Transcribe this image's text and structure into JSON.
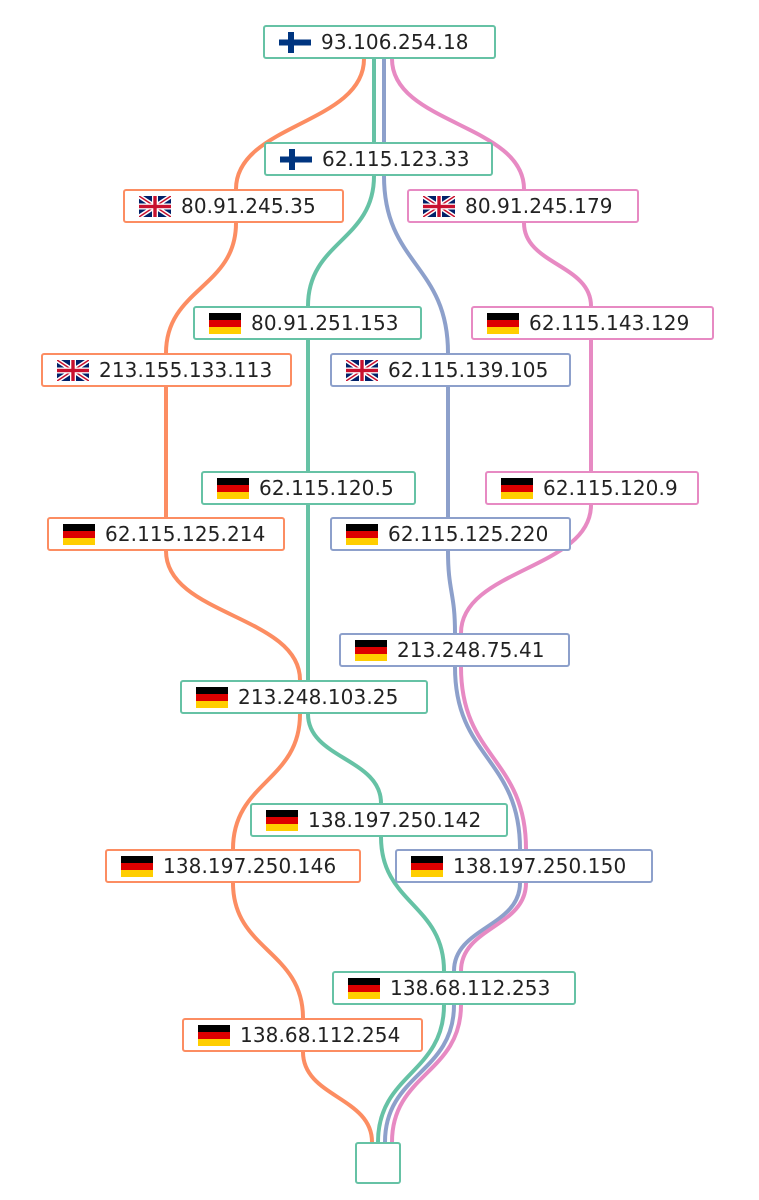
{
  "route_colors": {
    "orange": "#fc8d62",
    "green": "#66c2a5",
    "blue": "#8da0cb",
    "pink": "#e78ac3"
  },
  "flag_colors": {
    "fi": {
      "cross": "#003580",
      "field": "#ffffff"
    },
    "de": {
      "top": "#000000",
      "middle": "#dd0000",
      "bottom": "#ffce00"
    },
    "gb": {
      "field": "#012169",
      "saltire": "#ffffff",
      "cross": "#c8102e"
    }
  },
  "nodes": [
    {
      "id": "n0",
      "ip": "93.106.254.18",
      "country": "fi",
      "route": "green"
    },
    {
      "id": "n1",
      "ip": "62.115.123.33",
      "country": "fi",
      "route": "green"
    },
    {
      "id": "n2",
      "ip": "80.91.245.35",
      "country": "gb",
      "route": "orange"
    },
    {
      "id": "n3",
      "ip": "80.91.245.179",
      "country": "gb",
      "route": "pink"
    },
    {
      "id": "n4",
      "ip": "80.91.251.153",
      "country": "de",
      "route": "green"
    },
    {
      "id": "n5",
      "ip": "62.115.143.129",
      "country": "de",
      "route": "pink"
    },
    {
      "id": "n6",
      "ip": "213.155.133.113",
      "country": "gb",
      "route": "orange"
    },
    {
      "id": "n7",
      "ip": "62.115.139.105",
      "country": "gb",
      "route": "blue"
    },
    {
      "id": "n8",
      "ip": "62.115.120.5",
      "country": "de",
      "route": "green"
    },
    {
      "id": "n9",
      "ip": "62.115.120.9",
      "country": "de",
      "route": "pink"
    },
    {
      "id": "n10",
      "ip": "62.115.125.214",
      "country": "de",
      "route": "orange"
    },
    {
      "id": "n11",
      "ip": "62.115.125.220",
      "country": "de",
      "route": "blue"
    },
    {
      "id": "n12",
      "ip": "213.248.75.41",
      "country": "de",
      "route": "blue"
    },
    {
      "id": "n13",
      "ip": "213.248.103.25",
      "country": "de",
      "route": "green"
    },
    {
      "id": "n14",
      "ip": "138.197.250.142",
      "country": "de",
      "route": "green"
    },
    {
      "id": "n15",
      "ip": "138.197.250.146",
      "country": "de",
      "route": "orange"
    },
    {
      "id": "n16",
      "ip": "138.197.250.150",
      "country": "de",
      "route": "blue"
    },
    {
      "id": "n17",
      "ip": "138.68.112.253",
      "country": "de",
      "route": "green"
    },
    {
      "id": "n18",
      "ip": "138.68.112.254",
      "country": "de",
      "route": "orange"
    }
  ],
  "routes": [
    {
      "color": "orange",
      "hops": [
        "n0",
        "n2",
        "n6",
        "n10",
        "n13",
        "n15",
        "n18"
      ]
    },
    {
      "color": "green",
      "hops": [
        "n0",
        "n1",
        "n4",
        "n8",
        "n13",
        "n14",
        "n17"
      ]
    },
    {
      "color": "blue",
      "hops": [
        "n0",
        "n1",
        "n7",
        "n11",
        "n12",
        "n16",
        "n17"
      ]
    },
    {
      "color": "pink",
      "hops": [
        "n0",
        "n3",
        "n5",
        "n9",
        "n12",
        "n16",
        "n17"
      ]
    }
  ]
}
